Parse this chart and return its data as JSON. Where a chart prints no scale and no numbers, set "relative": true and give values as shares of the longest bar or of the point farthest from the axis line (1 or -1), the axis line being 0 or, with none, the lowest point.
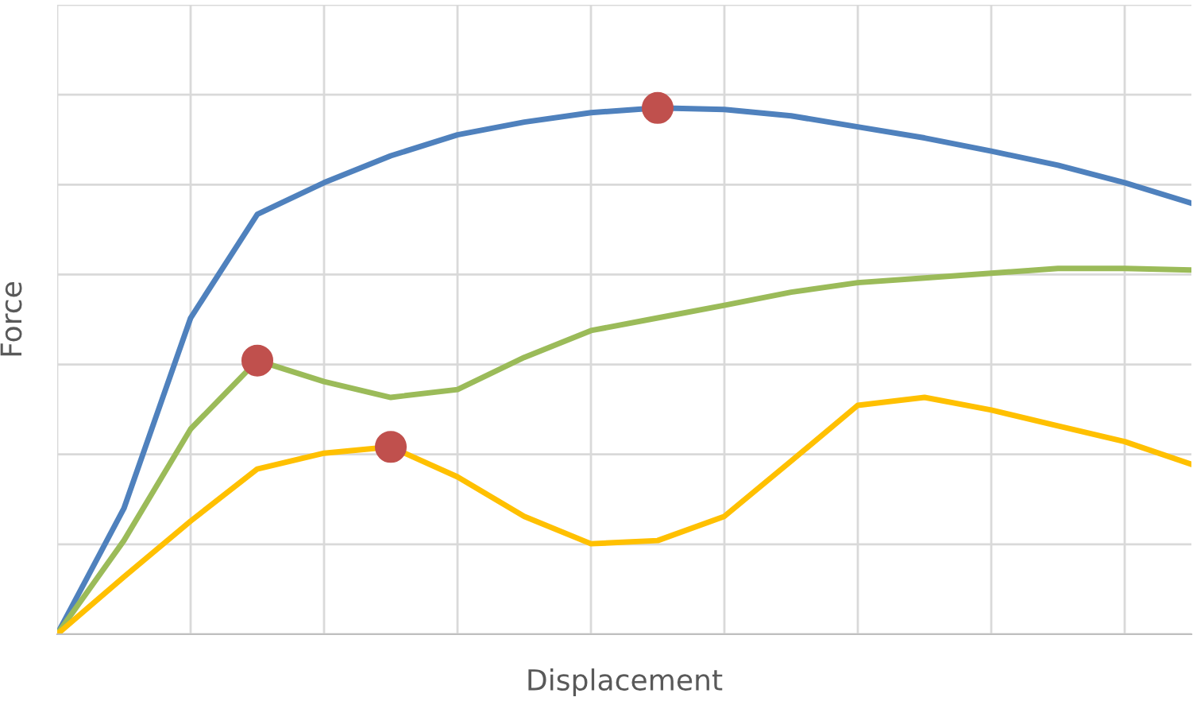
{
  "chart_data": {
    "type": "line",
    "xlabel": "Displacement",
    "ylabel": "Force",
    "relative": true,
    "grid": true,
    "categories": [
      null,
      null,
      null,
      null,
      null,
      null,
      null,
      null,
      null,
      null,
      null,
      null,
      null,
      null,
      null,
      null,
      null,
      null
    ],
    "series": [
      {
        "color": "#4f81bd",
        "values": [
          0,
          0.239,
          0.601,
          0.798,
          0.858,
          0.909,
          0.949,
          0.973,
          0.991,
          1.0,
          0.997,
          0.985,
          0.964,
          0.943,
          0.918,
          0.891,
          0.858,
          0.819
        ]
      },
      {
        "color": "#9bbb59",
        "values": [
          0,
          0.178,
          0.39,
          0.52,
          0.48,
          0.45,
          0.465,
          0.526,
          0.577,
          0.601,
          0.625,
          0.65,
          0.668,
          0.677,
          0.686,
          0.695,
          0.695,
          0.692
        ]
      },
      {
        "color": "#ffc000",
        "values": [
          0,
          0.109,
          0.215,
          0.314,
          0.344,
          0.356,
          0.299,
          0.224,
          0.172,
          0.178,
          0.224,
          0.329,
          0.435,
          0.45,
          0.426,
          0.396,
          0.366,
          0.323
        ]
      }
    ]
  }
}
